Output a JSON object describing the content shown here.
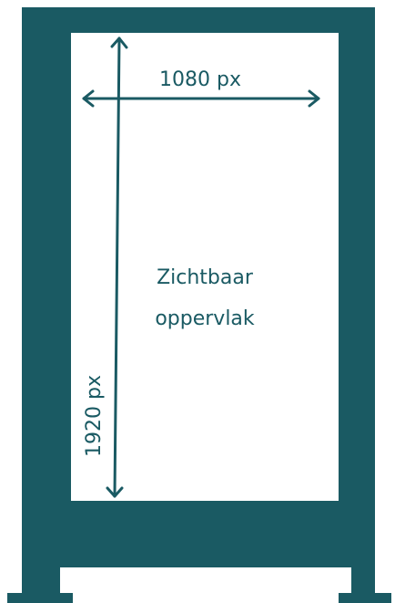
{
  "width_label": "1080 px",
  "height_label": "1920 px",
  "area_label": [
    "Zichtbaar",
    "oppervlak"
  ]
}
